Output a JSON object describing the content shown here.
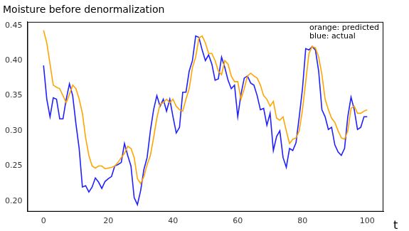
{
  "chart_data": {
    "type": "line",
    "title": "Moisture before denormalization",
    "xlabel": "t",
    "annotations": [
      "orange: predicted",
      "blue: actual"
    ],
    "x": [
      0,
      1,
      2,
      3,
      4,
      5,
      6,
      7,
      8,
      9,
      10,
      11,
      12,
      13,
      14,
      15,
      16,
      17,
      18,
      19,
      20,
      21,
      22,
      23,
      24,
      25,
      26,
      27,
      28,
      29,
      30,
      31,
      32,
      33,
      34,
      35,
      36,
      37,
      38,
      39,
      40,
      41,
      42,
      43,
      44,
      45,
      46,
      47,
      48,
      49,
      50,
      51,
      52,
      53,
      54,
      55,
      56,
      57,
      58,
      59,
      60,
      61,
      62,
      63,
      64,
      65,
      66,
      67,
      68,
      69,
      70,
      71,
      72,
      73,
      74,
      75,
      76,
      77,
      78,
      79,
      80,
      81,
      82,
      83,
      84,
      85,
      86,
      87,
      88,
      89,
      90,
      91,
      92,
      93,
      94,
      95,
      96,
      97,
      98,
      99,
      100
    ],
    "series": [
      {
        "color": "#ffa500",
        "values": [
          0.443,
          0.425,
          0.395,
          0.365,
          0.362,
          0.36,
          0.35,
          0.34,
          0.352,
          0.365,
          0.36,
          0.345,
          0.325,
          0.29,
          0.265,
          0.25,
          0.247,
          0.25,
          0.25,
          0.246,
          0.247,
          0.248,
          0.25,
          0.255,
          0.262,
          0.268,
          0.278,
          0.275,
          0.262,
          0.232,
          0.225,
          0.235,
          0.252,
          0.265,
          0.29,
          0.318,
          0.338,
          0.34,
          0.345,
          0.34,
          0.345,
          0.335,
          0.33,
          0.328,
          0.345,
          0.36,
          0.39,
          0.405,
          0.432,
          0.435,
          0.425,
          0.41,
          0.41,
          0.4,
          0.385,
          0.38,
          0.4,
          0.395,
          0.378,
          0.37,
          0.37,
          0.345,
          0.36,
          0.378,
          0.382,
          0.378,
          0.375,
          0.365,
          0.35,
          0.345,
          0.335,
          0.342,
          0.318,
          0.315,
          0.32,
          0.3,
          0.282,
          0.288,
          0.29,
          0.3,
          0.33,
          0.37,
          0.41,
          0.42,
          0.418,
          0.405,
          0.38,
          0.345,
          0.33,
          0.318,
          0.312,
          0.3,
          0.29,
          0.288,
          0.3,
          0.332,
          0.335,
          0.325,
          0.325,
          0.328,
          0.33
        ]
      },
      {
        "color": "#1f1fff",
        "values": [
          0.393,
          0.345,
          0.32,
          0.347,
          0.345,
          0.317,
          0.317,
          0.345,
          0.367,
          0.35,
          0.31,
          0.275,
          0.22,
          0.222,
          0.213,
          0.22,
          0.233,
          0.227,
          0.218,
          0.228,
          0.232,
          0.235,
          0.25,
          0.252,
          0.255,
          0.282,
          0.265,
          0.25,
          0.205,
          0.195,
          0.215,
          0.245,
          0.262,
          0.3,
          0.33,
          0.35,
          0.335,
          0.345,
          0.328,
          0.345,
          0.32,
          0.297,
          0.305,
          0.355,
          0.355,
          0.385,
          0.4,
          0.435,
          0.433,
          0.415,
          0.4,
          0.408,
          0.395,
          0.372,
          0.374,
          0.405,
          0.39,
          0.372,
          0.36,
          0.365,
          0.32,
          0.352,
          0.375,
          0.378,
          0.368,
          0.365,
          0.35,
          0.33,
          0.332,
          0.308,
          0.325,
          0.272,
          0.292,
          0.3,
          0.262,
          0.248,
          0.275,
          0.272,
          0.283,
          0.32,
          0.36,
          0.417,
          0.415,
          0.42,
          0.415,
          0.385,
          0.33,
          0.32,
          0.302,
          0.305,
          0.28,
          0.27,
          0.265,
          0.275,
          0.32,
          0.348,
          0.33,
          0.302,
          0.305,
          0.32,
          0.32
        ]
      }
    ],
    "xlim": [
      -5,
      105
    ],
    "xticks": [
      0,
      20,
      40,
      60,
      80,
      100
    ],
    "ylim": [
      0.185,
      0.455
    ],
    "yticks": [
      {
        "value": 0.2,
        "label": "0.20"
      },
      0.25,
      {
        "value": 0.3,
        "label": "0.30"
      },
      0.35,
      {
        "value": 0.4,
        "label": "0.40"
      },
      0.45
    ],
    "grid": false
  }
}
